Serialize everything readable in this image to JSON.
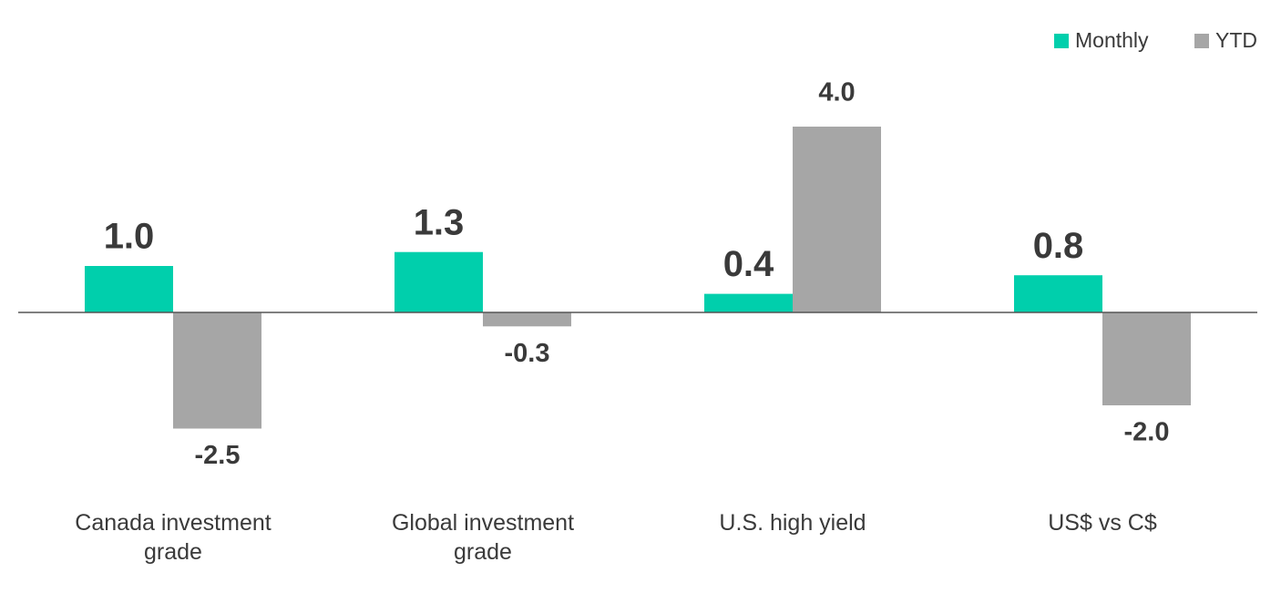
{
  "chart_data": {
    "type": "bar",
    "categories": [
      "Canada investment grade",
      "Global investment grade",
      "U.S. high yield",
      "US$ vs C$"
    ],
    "series": [
      {
        "name": "Monthly",
        "color": "#00cfac",
        "values": [
          1.0,
          1.3,
          0.4,
          0.8
        ],
        "value_labels": [
          "1.0",
          "1.3",
          "0.4",
          "0.8"
        ]
      },
      {
        "name": "YTD",
        "color": "#a6a6a6",
        "values": [
          -2.5,
          -0.3,
          4.0,
          -2.0
        ],
        "value_labels": [
          "-2.5",
          "-0.3",
          "4.0",
          "-2.0"
        ]
      }
    ],
    "legend": "top-right"
  }
}
